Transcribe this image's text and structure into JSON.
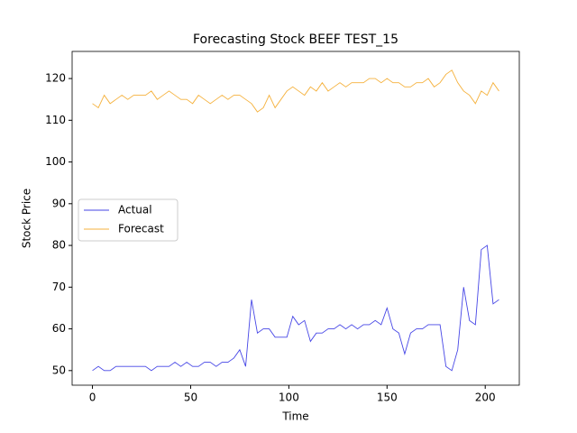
{
  "chart_data": {
    "type": "line",
    "title": "Forecasting Stock BEEF TEST_15",
    "xlabel": "Time",
    "ylabel": "Stock Price",
    "x": [
      0,
      3,
      6,
      9,
      12,
      15,
      18,
      21,
      24,
      27,
      30,
      33,
      36,
      39,
      42,
      45,
      48,
      51,
      54,
      57,
      60,
      63,
      66,
      69,
      72,
      75,
      78,
      81,
      84,
      87,
      90,
      93,
      96,
      99,
      102,
      105,
      108,
      111,
      114,
      117,
      120,
      123,
      126,
      129,
      132,
      135,
      138,
      141,
      144,
      147,
      150,
      153,
      156,
      159,
      162,
      165,
      168,
      171,
      174,
      177,
      180,
      183,
      186,
      189,
      192,
      195,
      198,
      201,
      204,
      207
    ],
    "series": [
      {
        "name": "Actual",
        "color": "#4646e6",
        "values": [
          50,
          51,
          50,
          50,
          51,
          51,
          51,
          51,
          51,
          51,
          50,
          51,
          51,
          51,
          52,
          51,
          52,
          51,
          51,
          52,
          52,
          51,
          52,
          52,
          53,
          55,
          51,
          67,
          59,
          60,
          60,
          58,
          58,
          58,
          63,
          61,
          62,
          57,
          59,
          59,
          60,
          60,
          61,
          60,
          61,
          60,
          61,
          61,
          62,
          61,
          65,
          60,
          59,
          54,
          59,
          60,
          60,
          61,
          61,
          61,
          51,
          50,
          55,
          70,
          62,
          61,
          79,
          80,
          66,
          67
        ]
      },
      {
        "name": "Forecast",
        "color": "#f5b13c",
        "values": [
          114,
          113,
          116,
          114,
          115,
          116,
          115,
          116,
          116,
          116,
          117,
          115,
          116,
          117,
          116,
          115,
          115,
          114,
          116,
          115,
          114,
          115,
          116,
          115,
          116,
          116,
          115,
          114,
          112,
          113,
          116,
          113,
          115,
          117,
          118,
          117,
          116,
          118,
          117,
          119,
          117,
          118,
          119,
          118,
          119,
          119,
          119,
          120,
          120,
          119,
          120,
          119,
          119,
          118,
          118,
          119,
          119,
          120,
          118,
          119,
          121,
          122,
          119,
          117,
          116,
          114,
          117,
          116,
          119,
          117
        ]
      }
    ],
    "xlim": [
      -10.35,
      217.35
    ],
    "ylim": [
      46.5,
      126.5
    ],
    "xticks": [
      0,
      50,
      100,
      150,
      200
    ],
    "yticks": [
      50,
      60,
      70,
      80,
      90,
      100,
      110,
      120
    ],
    "legend": "center left"
  }
}
